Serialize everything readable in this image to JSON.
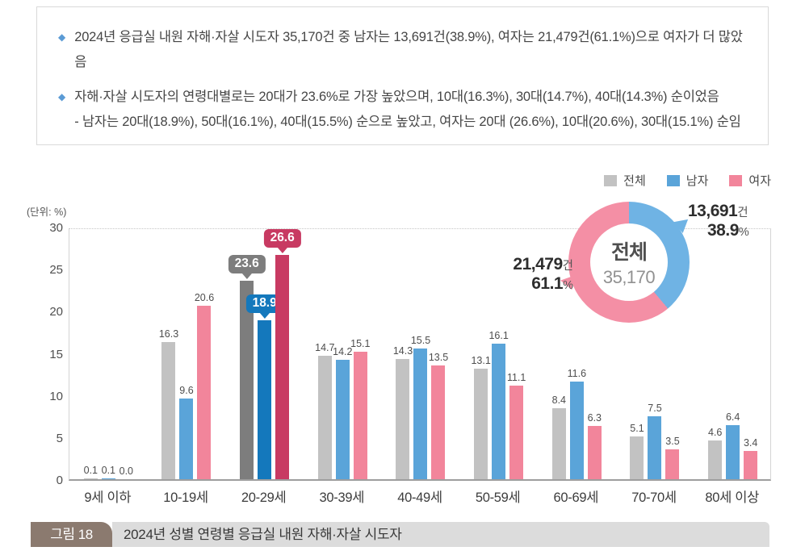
{
  "info_box": {
    "bullet_icon": "◆",
    "bullets": [
      {
        "text": "2024년 응급실 내원 자해·자살 시도자 35,170건 중 남자는 13,691건(38.9%), 여자는 21,479건(61.1%)으로 여자가 더 많았음",
        "subtext": ""
      },
      {
        "text": "자해·자살 시도자의 연령대별로는 20대가 23.6%로 가장 높았으며, 10대(16.3%), 30대(14.7%), 40대(14.3%) 순이었음",
        "subtext": "- 남자는 20대(18.9%), 50대(16.1%), 40대(15.5%) 순으로 높았고, 여자는 20대 (26.6%), 10대(20.6%), 30대(15.1%) 순임"
      }
    ]
  },
  "chart_data": {
    "type": "bar",
    "title": "2024년 성별 연령별 응급실 내원 자해·자살 시도자",
    "unit_label": "(단위: %)",
    "ylabel": "%",
    "ylim": [
      0,
      30
    ],
    "y_ticks": [
      30,
      25,
      20,
      15,
      10,
      5,
      0
    ],
    "grid": "top dotted line only",
    "legend_position": "top-right",
    "categories": [
      "9세 이하",
      "10-19세",
      "20-29세",
      "30-39세",
      "40-49세",
      "50-59세",
      "60-69세",
      "70-70세",
      "80세 이상"
    ],
    "highlight_category_index": 2,
    "series": [
      {
        "name": "전체",
        "color": "#c2c2c2",
        "highlight_color": "#7d7d7d",
        "values": [
          0.1,
          16.3,
          23.6,
          14.7,
          14.3,
          13.1,
          8.4,
          5.1,
          4.6
        ]
      },
      {
        "name": "남자",
        "color": "#5aa4d9",
        "highlight_color": "#1478bc",
        "values": [
          0.1,
          9.6,
          18.9,
          14.2,
          15.5,
          16.1,
          11.6,
          7.5,
          6.4
        ]
      },
      {
        "name": "여자",
        "color": "#f2859b",
        "highlight_color": "#c83a62",
        "values": [
          0.0,
          20.6,
          26.6,
          15.1,
          13.5,
          11.1,
          6.3,
          3.5,
          3.4
        ]
      }
    ]
  },
  "donut": {
    "center_title": "전체",
    "center_value": "35,170",
    "male_color": "#6fb3e4",
    "female_color": "#f48fa5",
    "male_deg": 140,
    "male": {
      "value": "13,691",
      "unit": "건",
      "pct": "38.9",
      "pct_unit": "%"
    },
    "female": {
      "value": "21,479",
      "unit": "건",
      "pct": "61.1",
      "pct_unit": "%"
    }
  },
  "caption": {
    "tag": "그림 18",
    "title": "2024년 성별 연령별 응급실 내원 자해·자살 시도자"
  }
}
